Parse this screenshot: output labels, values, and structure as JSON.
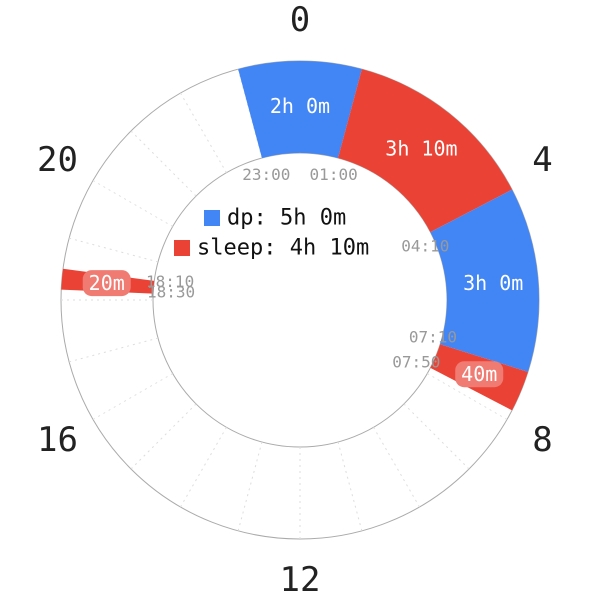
{
  "chart_data": {
    "type": "radial-timeline",
    "hour_ticks": [
      "0",
      "4",
      "8",
      "12",
      "16",
      "20"
    ],
    "colors": {
      "dp": "#4285f4",
      "sleep": "#ea4335"
    },
    "legend": [
      {
        "series": "dp",
        "label": "dp: 5h 0m"
      },
      {
        "series": "sleep",
        "label": "sleep: 4h 10m"
      }
    ],
    "segments": [
      {
        "series": "dp",
        "start": "23:00",
        "end": "01:00",
        "label": "2h 0m"
      },
      {
        "series": "sleep",
        "start": "01:00",
        "end": "04:10",
        "label": "3h 10m"
      },
      {
        "series": "dp",
        "start": "04:10",
        "end": "07:10",
        "label": "3h 0m"
      },
      {
        "series": "sleep",
        "start": "07:10",
        "end": "07:50",
        "label": "40m"
      },
      {
        "series": "sleep",
        "start": "18:10",
        "end": "18:30",
        "label": "20m"
      }
    ],
    "time_labels": [
      "23:00",
      "01:00",
      "04:10",
      "07:10",
      "07:50",
      "18:10",
      "18:30"
    ]
  }
}
